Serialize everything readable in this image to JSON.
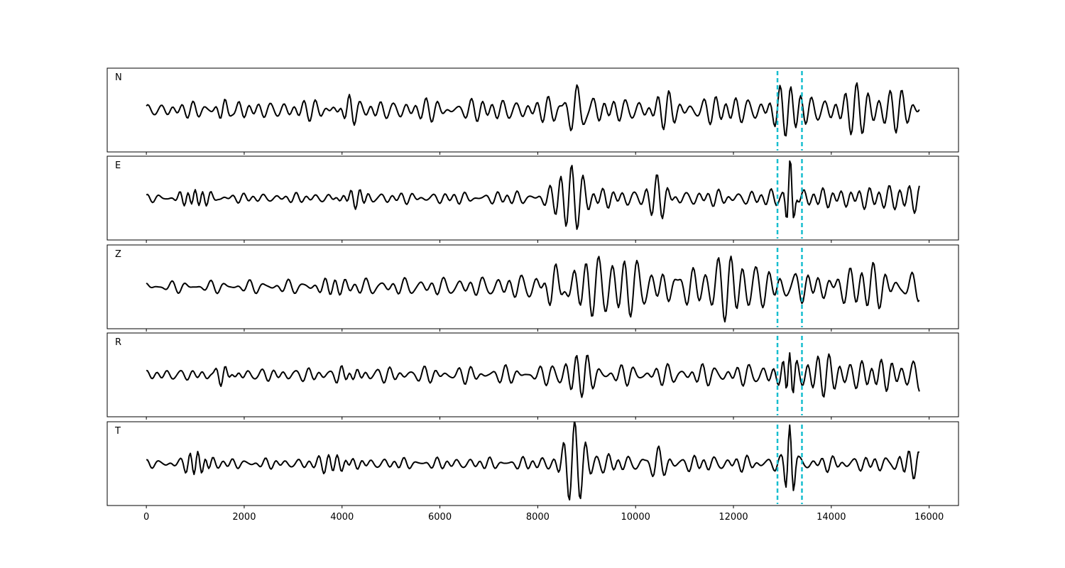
{
  "chart_data": {
    "type": "line",
    "title": "",
    "xlabel": "",
    "ylabel": "",
    "xlim": [
      -800,
      16600
    ],
    "x_ticks": [
      0,
      2000,
      4000,
      6000,
      8000,
      10000,
      12000,
      14000,
      16000
    ],
    "x_tick_labels": [
      "0",
      "2000",
      "4000",
      "6000",
      "8000",
      "10000",
      "12000",
      "14000",
      "16000"
    ],
    "samples": {
      "start": 0,
      "end": 15800,
      "step": 25
    },
    "y_axis_shown": false,
    "grid": false,
    "legend": "none",
    "trace_color": "#000000",
    "vertical_markers": [
      {
        "x": 12900,
        "style": "dashed",
        "color": "#17becf"
      },
      {
        "x": 13400,
        "style": "dashed",
        "color": "#17becf"
      }
    ],
    "panels": [
      {
        "name": "N",
        "ylim": [
          -1.15,
          1.15
        ],
        "components": [
          {
            "amp": 0.3,
            "freq": 0.00441,
            "phase": 0.0
          },
          {
            "amp": 0.2,
            "freq": 0.00317,
            "phase": 1.3
          },
          {
            "amp": 0.14,
            "freq": 0.00523,
            "phase": 2.1
          }
        ],
        "bursts": [
          {
            "center": 1600,
            "amp": 0.22,
            "width": 150,
            "period": 180
          },
          {
            "center": 4150,
            "amp": 0.18,
            "width": 200,
            "period": 170
          },
          {
            "center": 8800,
            "amp": 0.72,
            "width": 170,
            "period": 260
          },
          {
            "center": 10650,
            "amp": 0.4,
            "width": 180,
            "period": 230
          },
          {
            "center": 13150,
            "amp": 0.55,
            "width": 250,
            "period": 220
          },
          {
            "center": 14500,
            "amp": 0.5,
            "width": 550,
            "period": 230
          },
          {
            "center": 15400,
            "amp": 0.35,
            "width": 300,
            "period": 210
          }
        ],
        "envelope": [
          {
            "x": 0,
            "gain": 0.35
          },
          {
            "x": 3000,
            "gain": 0.5
          },
          {
            "x": 8000,
            "gain": 0.6
          },
          {
            "x": 12500,
            "gain": 0.75
          },
          {
            "x": 15800,
            "gain": 0.85
          }
        ]
      },
      {
        "name": "E",
        "ylim": [
          -1.15,
          1.15
        ],
        "components": [
          {
            "amp": 0.26,
            "freq": 0.00463,
            "phase": 0.5
          },
          {
            "amp": 0.18,
            "freq": 0.00289,
            "phase": 2.4
          },
          {
            "amp": 0.12,
            "freq": 0.00557,
            "phase": 1.1
          }
        ],
        "bursts": [
          {
            "center": 1000,
            "amp": 0.28,
            "width": 200,
            "period": 160
          },
          {
            "center": 4200,
            "amp": 0.22,
            "width": 220,
            "period": 170
          },
          {
            "center": 8700,
            "amp": 0.85,
            "width": 220,
            "period": 230
          },
          {
            "center": 10450,
            "amp": 0.6,
            "width": 150,
            "period": 240
          },
          {
            "center": 13160,
            "amp": 1.05,
            "width": 70,
            "period": 160
          },
          {
            "center": 14800,
            "amp": 0.3,
            "width": 700,
            "period": 200
          }
        ],
        "envelope": [
          {
            "x": 0,
            "gain": 0.25
          },
          {
            "x": 3000,
            "gain": 0.28
          },
          {
            "x": 7000,
            "gain": 0.35
          },
          {
            "x": 9000,
            "gain": 0.55
          },
          {
            "x": 12000,
            "gain": 0.45
          },
          {
            "x": 15800,
            "gain": 0.55
          }
        ]
      },
      {
        "name": "Z",
        "ylim": [
          -1.15,
          1.15
        ],
        "components": [
          {
            "amp": 0.3,
            "freq": 0.00377,
            "phase": 1.7
          },
          {
            "amp": 0.2,
            "freq": 0.00251,
            "phase": 0.2
          },
          {
            "amp": 0.13,
            "freq": 0.00509,
            "phase": 2.9
          }
        ],
        "bursts": [
          {
            "center": 3850,
            "amp": 0.35,
            "width": 180,
            "period": 230
          },
          {
            "center": 8350,
            "amp": 1.0,
            "width": 160,
            "period": 260
          },
          {
            "center": 9500,
            "amp": 0.55,
            "width": 900,
            "period": 260
          },
          {
            "center": 11700,
            "amp": 0.55,
            "width": 600,
            "period": 250
          },
          {
            "center": 14400,
            "amp": 0.55,
            "width": 400,
            "period": 230
          }
        ],
        "envelope": [
          {
            "x": 0,
            "gain": 0.28
          },
          {
            "x": 3000,
            "gain": 0.35
          },
          {
            "x": 8000,
            "gain": 0.55
          },
          {
            "x": 9500,
            "gain": 0.85
          },
          {
            "x": 12500,
            "gain": 0.8
          },
          {
            "x": 15800,
            "gain": 0.7
          }
        ]
      },
      {
        "name": "R",
        "ylim": [
          -1.15,
          1.15
        ],
        "components": [
          {
            "amp": 0.28,
            "freq": 0.00421,
            "phase": 2.2
          },
          {
            "amp": 0.18,
            "freq": 0.00301,
            "phase": 0.9
          },
          {
            "amp": 0.12,
            "freq": 0.00547,
            "phase": 0.4
          }
        ],
        "bursts": [
          {
            "center": 1600,
            "amp": 0.22,
            "width": 150,
            "period": 170
          },
          {
            "center": 4150,
            "amp": 0.25,
            "width": 200,
            "period": 180
          },
          {
            "center": 8800,
            "amp": 0.45,
            "width": 250,
            "period": 230
          },
          {
            "center": 13150,
            "amp": 1.0,
            "width": 70,
            "period": 170
          },
          {
            "center": 14600,
            "amp": 0.45,
            "width": 900,
            "period": 220
          }
        ],
        "envelope": [
          {
            "x": 0,
            "gain": 0.3
          },
          {
            "x": 4000,
            "gain": 0.4
          },
          {
            "x": 8000,
            "gain": 0.5
          },
          {
            "x": 12000,
            "gain": 0.6
          },
          {
            "x": 15800,
            "gain": 0.75
          }
        ]
      },
      {
        "name": "T",
        "ylim": [
          -1.15,
          1.15
        ],
        "components": [
          {
            "amp": 0.26,
            "freq": 0.00457,
            "phase": 0.8
          },
          {
            "amp": 0.17,
            "freq": 0.00283,
            "phase": 2.6
          },
          {
            "amp": 0.12,
            "freq": 0.00571,
            "phase": 1.5
          }
        ],
        "bursts": [
          {
            "center": 1050,
            "amp": 0.3,
            "width": 180,
            "period": 160
          },
          {
            "center": 3900,
            "amp": 0.25,
            "width": 250,
            "period": 180
          },
          {
            "center": 8750,
            "amp": 0.95,
            "width": 220,
            "period": 230
          },
          {
            "center": 10450,
            "amp": 0.55,
            "width": 150,
            "period": 240
          },
          {
            "center": 13150,
            "amp": 0.95,
            "width": 80,
            "period": 170
          },
          {
            "center": 15600,
            "amp": 0.25,
            "width": 200,
            "period": 200
          }
        ],
        "envelope": [
          {
            "x": 0,
            "gain": 0.28
          },
          {
            "x": 4000,
            "gain": 0.32
          },
          {
            "x": 7500,
            "gain": 0.35
          },
          {
            "x": 9000,
            "gain": 0.55
          },
          {
            "x": 12500,
            "gain": 0.45
          },
          {
            "x": 15800,
            "gain": 0.45
          }
        ]
      }
    ]
  }
}
